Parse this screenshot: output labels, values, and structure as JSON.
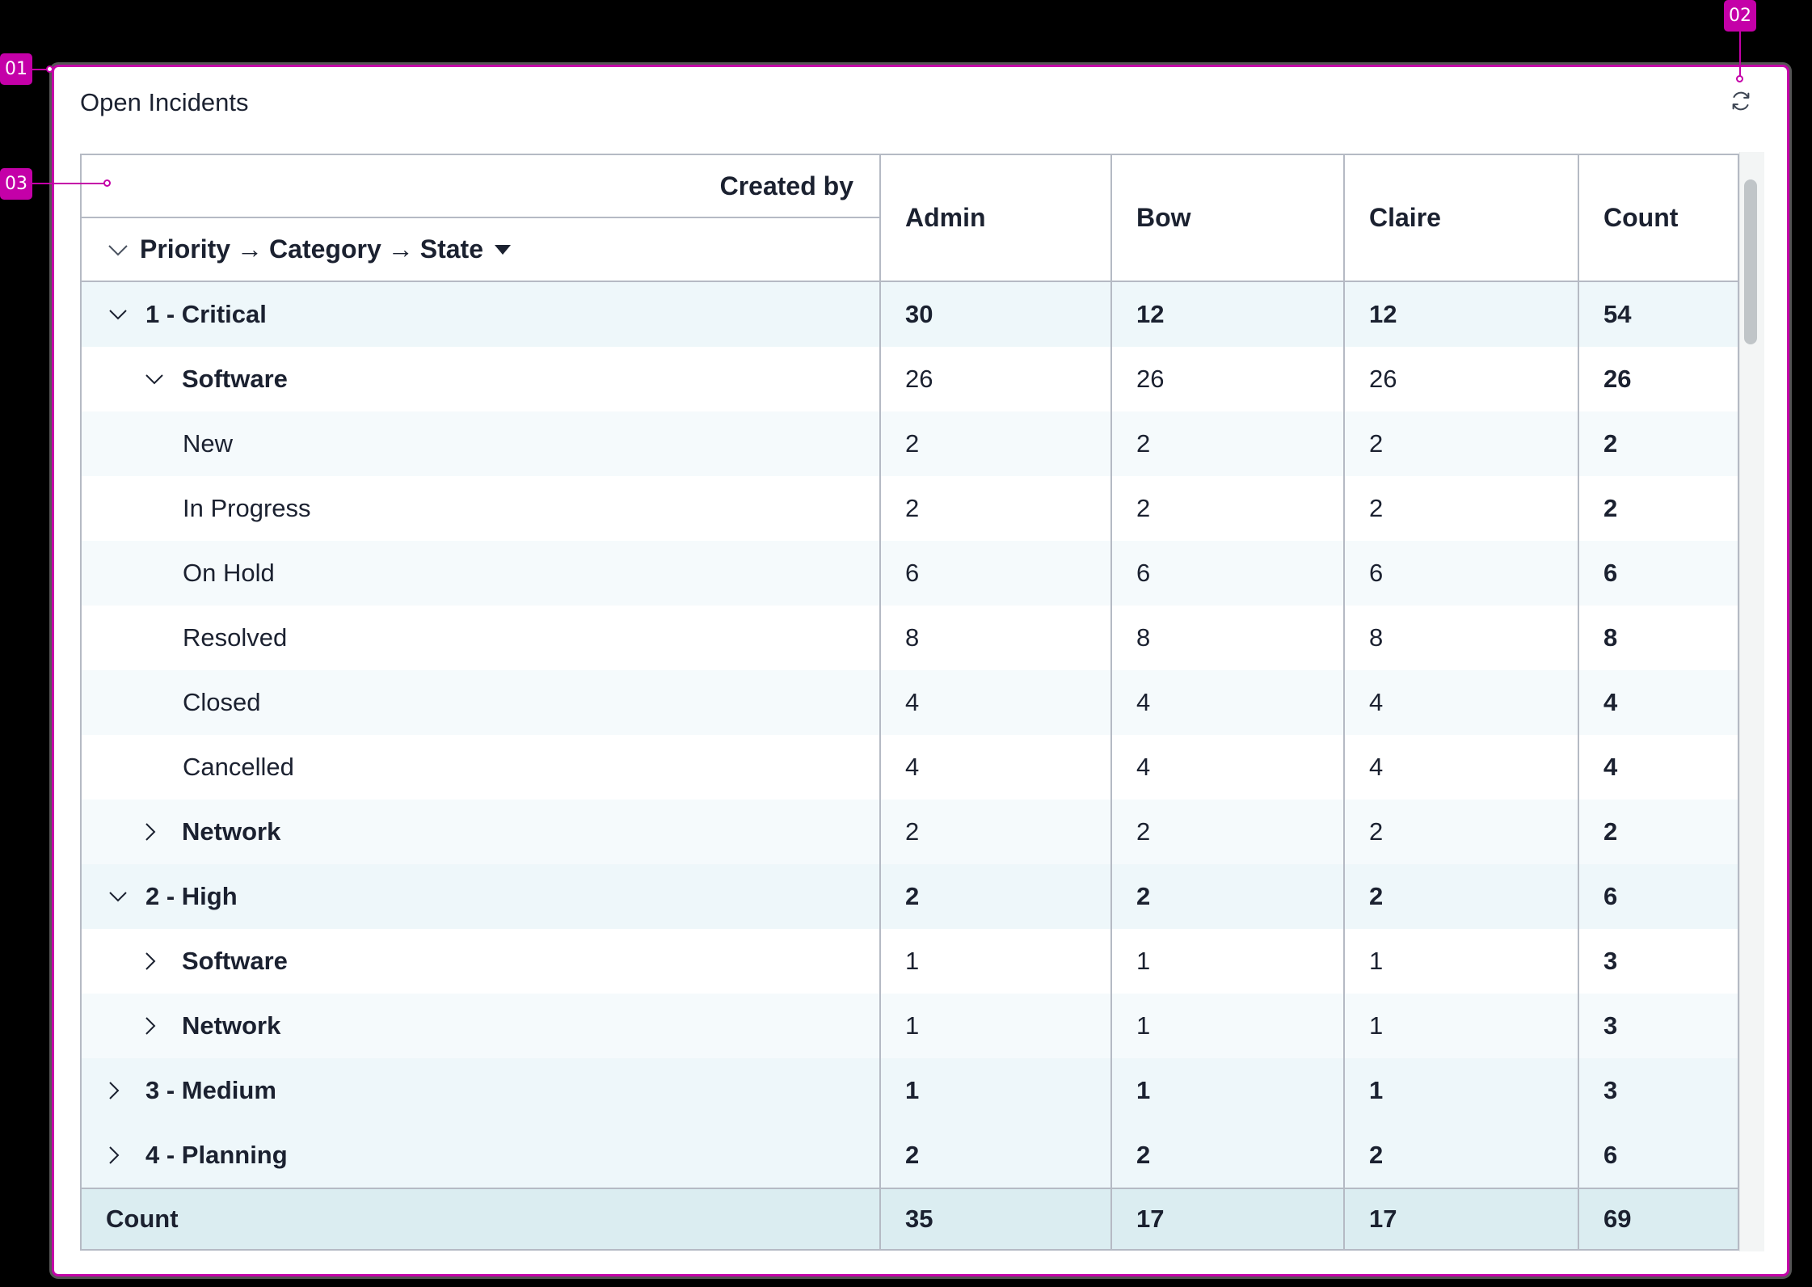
{
  "widget": {
    "title": "Open Incidents",
    "refresh_icon": "refresh-icon"
  },
  "table": {
    "column_group_label": "Created by",
    "row_group": {
      "levels": [
        "Priority",
        "Category",
        "State"
      ],
      "separator": "→",
      "expand_icon": "chevron-down-icon",
      "sort_icon": "caret-down-icon"
    },
    "columns": [
      "Admin",
      "Bow",
      "Claire",
      "Count"
    ],
    "rows": [
      {
        "label": "1 - Critical",
        "level": 1,
        "expanded": true,
        "bg": "lvl1",
        "values": [
          "30",
          "12",
          "12",
          "54"
        ]
      },
      {
        "label": "Software",
        "level": 2,
        "expanded": true,
        "bg": "plain",
        "values": [
          "26",
          "26",
          "26",
          "26"
        ]
      },
      {
        "label": "New",
        "level": 3,
        "bg": "alt",
        "values": [
          "2",
          "2",
          "2",
          "2"
        ]
      },
      {
        "label": "In Progress",
        "level": 3,
        "bg": "plain",
        "values": [
          "2",
          "2",
          "2",
          "2"
        ]
      },
      {
        "label": "On Hold",
        "level": 3,
        "bg": "alt",
        "values": [
          "6",
          "6",
          "6",
          "6"
        ]
      },
      {
        "label": "Resolved",
        "level": 3,
        "bg": "plain",
        "values": [
          "8",
          "8",
          "8",
          "8"
        ]
      },
      {
        "label": "Closed",
        "level": 3,
        "bg": "alt",
        "values": [
          "4",
          "4",
          "4",
          "4"
        ]
      },
      {
        "label": "Cancelled",
        "level": 3,
        "bg": "plain",
        "values": [
          "4",
          "4",
          "4",
          "4"
        ]
      },
      {
        "label": "Network",
        "level": 2,
        "expanded": false,
        "bg": "alt",
        "values": [
          "2",
          "2",
          "2",
          "2"
        ]
      },
      {
        "label": "2 - High",
        "level": 1,
        "expanded": true,
        "bg": "lvl1",
        "values": [
          "2",
          "2",
          "2",
          "6"
        ]
      },
      {
        "label": "Software",
        "level": 2,
        "expanded": false,
        "bg": "plain",
        "values": [
          "1",
          "1",
          "1",
          "3"
        ]
      },
      {
        "label": "Network",
        "level": 2,
        "expanded": false,
        "bg": "alt",
        "values": [
          "1",
          "1",
          "1",
          "3"
        ]
      },
      {
        "label": "3 - Medium",
        "level": 1,
        "expanded": false,
        "bg": "lvl1",
        "values": [
          "1",
          "1",
          "1",
          "3"
        ]
      },
      {
        "label": "4 - Planning",
        "level": 1,
        "expanded": false,
        "bg": "lvl1",
        "values": [
          "2",
          "2",
          "2",
          "6"
        ]
      }
    ],
    "footer": {
      "label": "Count",
      "values": [
        "35",
        "17",
        "17",
        "69"
      ]
    }
  },
  "annotations": [
    {
      "id": "01",
      "target": "widget-card"
    },
    {
      "id": "02",
      "target": "refresh-button"
    },
    {
      "id": "03",
      "target": "table-header"
    }
  ],
  "colors": {
    "annotation": "#c400a8",
    "priority_row_bg": "#eef7fa",
    "alt_row_bg": "#f5fafc",
    "footer_bg": "#dbedf1",
    "border": "#b5bac4",
    "text": "#1b2130"
  }
}
